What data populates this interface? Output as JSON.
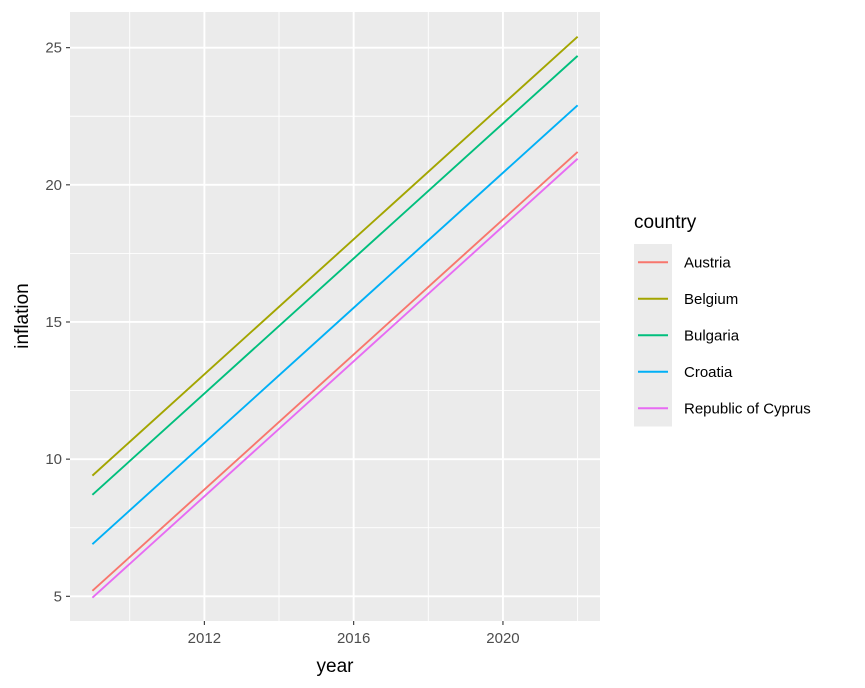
{
  "chart_data": {
    "type": "line",
    "xlabel": "year",
    "ylabel": "inflation",
    "x": [
      2009,
      2022
    ],
    "xlim": [
      2008.4,
      2022.6
    ],
    "ylim": [
      4.1,
      26.3
    ],
    "xticks": [
      2012,
      2016,
      2020
    ],
    "xminor": [
      2010,
      2014,
      2018,
      2022
    ],
    "yticks": [
      5,
      10,
      15,
      20,
      25
    ],
    "yminor": [
      7.5,
      12.5,
      17.5,
      22.5
    ],
    "grid": true,
    "legend": {
      "title": "country",
      "placement": "right"
    },
    "series": [
      {
        "name": "Austria",
        "color": "#F8766D",
        "values": [
          5.2,
          21.2
        ]
      },
      {
        "name": "Belgium",
        "color": "#A3A500",
        "values": [
          9.4,
          25.4
        ]
      },
      {
        "name": "Bulgaria",
        "color": "#00BF7D",
        "values": [
          8.7,
          24.7
        ]
      },
      {
        "name": "Croatia",
        "color": "#00B0F6",
        "values": [
          6.9,
          22.9
        ]
      },
      {
        "name": "Republic of Cyprus",
        "color": "#E76BF3",
        "values": [
          4.95,
          20.95
        ]
      }
    ]
  },
  "colors": {
    "panel_bg": "#EBEBEB",
    "grid": "#FFFFFF",
    "tick": "#333333"
  }
}
